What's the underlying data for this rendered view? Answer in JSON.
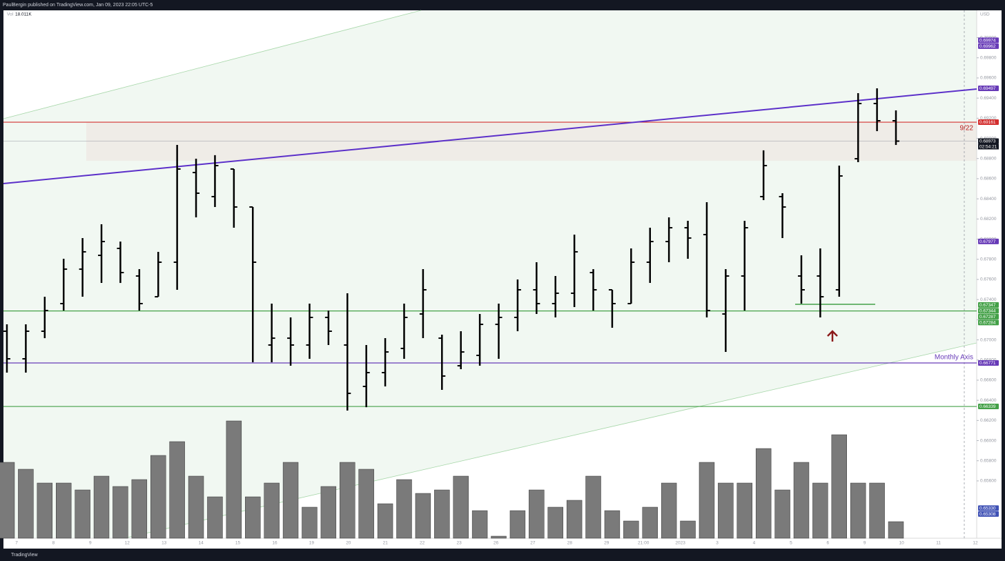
{
  "header": "PaulBergin published on TradingView.com, Jan 09, 2023 22:05 UTC-5",
  "footer": "TradingView",
  "chart_data": {
    "type": "ohlc",
    "currency": "USD",
    "volume_label": "Vol",
    "volume_value": "18.011K",
    "ylim": [
      0.65031,
      0.70271
    ],
    "yticks": [
      {
        "value": 0.656,
        "label": "0.65600"
      },
      {
        "value": 0.658,
        "label": "0.65800"
      },
      {
        "value": 0.66,
        "label": "0.66000"
      },
      {
        "value": 0.662,
        "label": "0.66200"
      },
      {
        "value": 0.664,
        "label": "0.66400"
      },
      {
        "value": 0.666,
        "label": "0.66600"
      },
      {
        "value": 0.668,
        "label": "0.66800"
      },
      {
        "value": 0.67,
        "label": "0.67000"
      },
      {
        "value": 0.672,
        "label": "0.67200"
      },
      {
        "value": 0.674,
        "label": "0.67400"
      },
      {
        "value": 0.676,
        "label": "0.67600"
      },
      {
        "value": 0.678,
        "label": "0.67800"
      },
      {
        "value": 0.68,
        "label": "0.68000"
      },
      {
        "value": 0.682,
        "label": "0.68200"
      },
      {
        "value": 0.684,
        "label": "0.68400"
      },
      {
        "value": 0.686,
        "label": "0.68600"
      },
      {
        "value": 0.688,
        "label": "0.68800"
      },
      {
        "value": 0.69,
        "label": "0.69000"
      },
      {
        "value": 0.692,
        "label": "0.69200"
      },
      {
        "value": 0.694,
        "label": "0.69400"
      },
      {
        "value": 0.696,
        "label": "0.69600"
      },
      {
        "value": 0.698,
        "label": "0.69800"
      },
      {
        "value": 0.7,
        "label": "0.70000"
      }
    ],
    "grid": false,
    "bar_color": "#000000",
    "volume_color": "#7a7a7a",
    "vlim": [
      0,
      150000
    ],
    "x_labels": [
      "7",
      "8",
      "9",
      "12",
      "13",
      "14",
      "15",
      "16",
      "19",
      "20",
      "21",
      "22",
      "23",
      "26",
      "27",
      "28",
      "29",
      "21:00",
      "2023",
      "3",
      "4",
      "5",
      "6",
      "9",
      "10",
      "11",
      "12"
    ],
    "open": [
      0.67086,
      0.66812,
      0.67086,
      0.6736,
      0.67702,
      0.67839,
      0.67908,
      0.67634,
      0.67428,
      0.67771,
      0.68661,
      0.68422,
      0.68696,
      0.68319,
      0.66949,
      0.67017,
      0.66949,
      0.67223,
      0.66949,
      0.66538,
      0.66675,
      0.66915,
      0.67257,
      0.67017,
      0.66743,
      0.66846,
      0.67154,
      0.67223,
      0.67497,
      0.6736,
      0.67463,
      0.67668,
      0.67497,
      0.6736,
      0.67771,
      0.67976,
      0.68113,
      0.68045,
      0.67257,
      0.67634,
      0.68422,
      0.68422,
      0.67634,
      0.67634,
      0.67497,
      0.68798,
      0.69346,
      0.69175
    ],
    "high": [
      0.67154,
      0.67154,
      0.67428,
      0.67805,
      0.68011,
      0.68148,
      0.67976,
      0.67702,
      0.67874,
      0.68935,
      0.68798,
      0.68833,
      0.68696,
      0.68319,
      0.6736,
      0.67223,
      0.6736,
      0.67291,
      0.67463,
      0.66949,
      0.67017,
      0.6736,
      0.67702,
      0.67052,
      0.67086,
      0.67257,
      0.6736,
      0.676,
      0.67771,
      0.67634,
      0.68045,
      0.67702,
      0.67497,
      0.67908,
      0.68113,
      0.68216,
      0.68182,
      0.68367,
      0.67702,
      0.68182,
      0.68881,
      0.68456,
      0.67839,
      0.67908,
      0.6873,
      0.69449,
      0.69497,
      0.69278
    ],
    "low": [
      0.66675,
      0.66675,
      0.67017,
      0.67291,
      0.67428,
      0.67565,
      0.67565,
      0.67291,
      0.67428,
      0.67497,
      0.68216,
      0.68319,
      0.68113,
      0.66778,
      0.66778,
      0.66743,
      0.66812,
      0.66949,
      0.66298,
      0.66332,
      0.66538,
      0.66812,
      0.67017,
      0.66504,
      0.66709,
      0.66743,
      0.66812,
      0.67086,
      0.67257,
      0.67223,
      0.67326,
      0.67291,
      0.6712,
      0.6736,
      0.67565,
      0.67771,
      0.67805,
      0.67223,
      0.6688,
      0.67291,
      0.68387,
      0.68011,
      0.6736,
      0.67223,
      0.67428,
      0.68764,
      0.69072,
      0.68935
    ],
    "close": [
      0.66812,
      0.67086,
      0.67291,
      0.67702,
      0.67874,
      0.67976,
      0.67668,
      0.6736,
      0.67771,
      0.68696,
      0.68456,
      0.6873,
      0.68319,
      0.67771,
      0.67017,
      0.66949,
      0.67223,
      0.67086,
      0.66469,
      0.66675,
      0.6688,
      0.67223,
      0.67497,
      0.66641,
      0.6688,
      0.67154,
      0.67223,
      0.67497,
      0.6736,
      0.67463,
      0.67874,
      0.67497,
      0.6736,
      0.67771,
      0.67976,
      0.68113,
      0.68011,
      0.67291,
      0.67634,
      0.68113,
      0.6873,
      0.68319,
      0.67497,
      0.67428,
      0.68627,
      0.69346,
      0.69175,
      0.68973
    ],
    "volume": [
      82500,
      75000,
      60000,
      60000,
      52500,
      67500,
      56250,
      63750,
      90000,
      105000,
      67500,
      45000,
      127500,
      45000,
      60000,
      82500,
      33750,
      56250,
      82500,
      75000,
      37500,
      63750,
      48750,
      52500,
      67500,
      30000,
      2250,
      30000,
      52500,
      33750,
      41250,
      67500,
      30000,
      18750,
      33750,
      60000,
      18750,
      82500,
      60000,
      60000,
      97500,
      52500,
      82500,
      60000,
      112500,
      60000,
      60000,
      18011
    ],
    "levels": [
      {
        "value": 0.69161,
        "color": "#d32f2f"
      },
      {
        "value": 0.68973,
        "color": "#9598a1"
      },
      {
        "value": 0.67287,
        "color": "#43a047"
      },
      {
        "value": 0.66771,
        "color": "#673ab7"
      },
      {
        "value": 0.66339,
        "color": "#43a047"
      }
    ],
    "price_labels": [
      {
        "value": 0.69974,
        "label": "0.69974",
        "color": "#673ab7"
      },
      {
        "value": 0.69962,
        "label": "0.69962",
        "color": "#673ab7"
      },
      {
        "value": 0.69497,
        "label": "0.69497",
        "color": "#673ab7"
      },
      {
        "value": 0.69161,
        "label": "0.69161",
        "color": "#d32f2f"
      },
      {
        "value": 0.68973,
        "label": "0.68973",
        "color": "#131722"
      },
      {
        "value": 0.67977,
        "label": "0.67977",
        "color": "#673ab7"
      },
      {
        "value": 0.67347,
        "label": "0.67347",
        "color": "#43a047"
      },
      {
        "value": 0.67344,
        "label": "0.67344",
        "color": "#43a047"
      },
      {
        "value": 0.67287,
        "label": "0.67287",
        "color": "#43a047"
      },
      {
        "value": 0.67284,
        "label": "0.67284",
        "color": "#43a047"
      },
      {
        "value": 0.66771,
        "label": "0.66771",
        "color": "#673ab7"
      },
      {
        "value": 0.66339,
        "label": "0.66339",
        "color": "#43a047"
      },
      {
        "value": 0.6533,
        "label": "0.65330",
        "color": "#3f51b5"
      },
      {
        "value": 0.65308,
        "label": "0.65308",
        "color": "#3f51b5"
      }
    ],
    "countdown": "02:54:21",
    "annotations": [
      "9/22",
      "Monthly Axis"
    ]
  }
}
